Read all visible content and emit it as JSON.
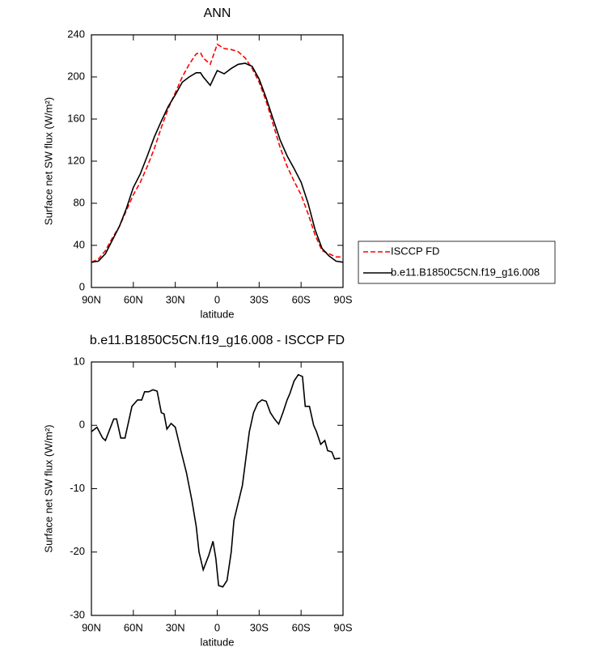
{
  "chart_data": [
    {
      "type": "line",
      "title": "ANN",
      "x_label": "latitude",
      "y_label": "Surface net SW flux (W/m²)",
      "x": [
        90,
        85,
        80,
        75,
        70,
        65,
        60,
        55,
        50,
        45,
        40,
        35,
        30,
        25,
        20,
        15,
        12,
        10,
        5,
        0,
        -5,
        -10,
        -15,
        -20,
        -25,
        -30,
        -35,
        -40,
        -45,
        -50,
        -55,
        -60,
        -65,
        -70,
        -75,
        -80,
        -85,
        -90
      ],
      "series": [
        {
          "name": "ISCCP FD",
          "color": "#ff0000",
          "dash": true,
          "values": [
            24,
            27,
            35,
            47,
            58,
            73,
            88,
            100,
            115,
            132,
            152,
            170,
            185,
            200,
            212,
            222,
            223,
            218,
            212,
            231,
            227,
            226,
            224,
            218,
            208,
            195,
            177,
            155,
            133,
            115,
            101,
            88,
            70,
            50,
            35,
            32,
            29,
            29
          ]
        },
        {
          "name": "b.e11.B1850C5CN.f19_g16.008",
          "color": "#000000",
          "dash": false,
          "values": [
            24,
            25,
            32,
            45,
            58,
            75,
            95,
            108,
            125,
            143,
            158,
            172,
            183,
            195,
            200,
            204,
            204,
            200,
            192,
            206,
            203,
            208,
            212,
            213,
            210,
            198,
            180,
            160,
            140,
            125,
            113,
            100,
            80,
            55,
            37,
            30,
            25,
            24
          ]
        }
      ],
      "xlim": [
        90,
        -90
      ],
      "xticks": [
        {
          "value": 90,
          "label": "90N"
        },
        {
          "value": 60,
          "label": "60N"
        },
        {
          "value": 30,
          "label": "30N"
        },
        0,
        {
          "value": -30,
          "label": "30S"
        },
        {
          "value": -60,
          "label": "60S"
        },
        {
          "value": -90,
          "label": "90S"
        }
      ],
      "ylim": [
        0,
        240
      ],
      "yticks": [
        0,
        40,
        80,
        120,
        160,
        200,
        240
      ],
      "legend": "right",
      "grid": false
    },
    {
      "type": "line",
      "title": "b.e11.B1850C5CN.f19_g16.008 - ISCCP FD",
      "x_label": "latitude",
      "y_label": "Surface net SW flux (W/m²)",
      "x": [
        90,
        86,
        82,
        80,
        74,
        72,
        69,
        66,
        61,
        57,
        54,
        52,
        49,
        46,
        43,
        40,
        38,
        36,
        33,
        30,
        26,
        22,
        18,
        15,
        13,
        10,
        6,
        3,
        1,
        -1,
        -4,
        -7,
        -10,
        -12,
        -18,
        -23,
        -26,
        -29,
        -32,
        -35,
        -38,
        -41,
        -44,
        -47,
        -50,
        -52,
        -55,
        -58,
        -61,
        -63,
        -66,
        -69,
        -71,
        -74,
        -77,
        -79,
        -82,
        -84,
        -88
      ],
      "series": [
        {
          "name": "b.e11.B1850C5CN.f19_g16.008 - ISCCP FD",
          "color": "#000000",
          "dash": false,
          "values": [
            -1,
            -0.3,
            -2,
            -2.4,
            1,
            1,
            -2,
            -2,
            3,
            4,
            4,
            5.3,
            5.3,
            5.6,
            5.4,
            2,
            1.8,
            -0.6,
            0.3,
            -0.3,
            -4,
            -7.5,
            -12,
            -16,
            -20,
            -22.8,
            -20.5,
            -18.3,
            -21,
            -25.3,
            -25.5,
            -24.5,
            -20,
            -15,
            -9.5,
            -1,
            2,
            3.5,
            4,
            3.8,
            2,
            1,
            0.2,
            2,
            4,
            5,
            7,
            8,
            7.7,
            3,
            3,
            0,
            -1,
            -3,
            -2.4,
            -4,
            -4.2,
            -5.3,
            -5.2
          ]
        }
      ],
      "xlim": [
        90,
        -90
      ],
      "xticks": [
        {
          "value": 90,
          "label": "90N"
        },
        {
          "value": 60,
          "label": "60N"
        },
        {
          "value": 30,
          "label": "30N"
        },
        0,
        {
          "value": -30,
          "label": "30S"
        },
        {
          "value": -60,
          "label": "60S"
        },
        {
          "value": -90,
          "label": "90S"
        }
      ],
      "ylim": [
        -30,
        10
      ],
      "yticks": [
        -30,
        -20,
        -10,
        0,
        10
      ],
      "grid": false
    }
  ]
}
